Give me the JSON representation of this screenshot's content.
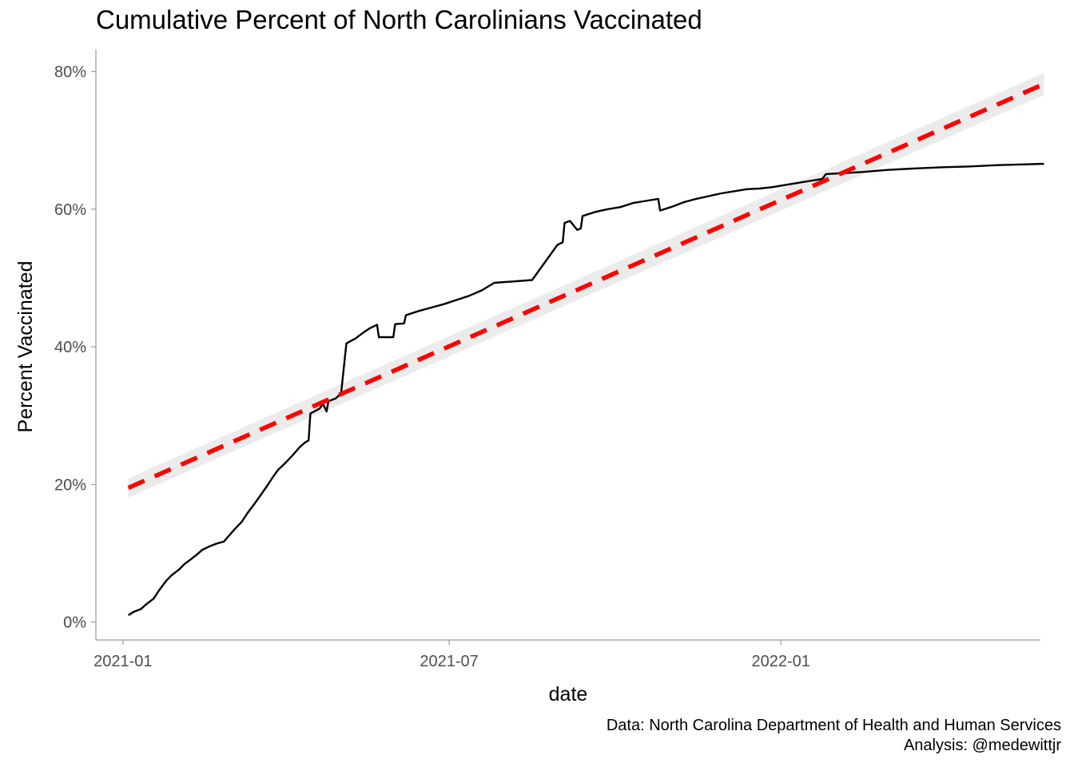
{
  "chart_data": {
    "type": "line",
    "title": "Cumulative Percent of North Carolinians Vaccinated",
    "xlabel": "date",
    "ylabel": "Percent Vaccinated",
    "x_ticks": [
      "2021-01",
      "2021-07",
      "2022-01"
    ],
    "y_ticks": [
      "0%",
      "20%",
      "40%",
      "60%",
      "80%"
    ],
    "ylim": [
      -2.6,
      83.2
    ],
    "xlim": [
      "2020-12-17",
      "2022-05-25"
    ],
    "grid": false,
    "colors": {
      "actual": "#000000",
      "trend": "#ff0000",
      "trend_band": "#ebebeb"
    },
    "series": [
      {
        "style": "solid",
        "points": [
          [
            "2021-01-04",
            1.0
          ],
          [
            "2021-01-07",
            1.5
          ],
          [
            "2021-01-11",
            1.9
          ],
          [
            "2021-01-14",
            2.6
          ],
          [
            "2021-01-18",
            3.4
          ],
          [
            "2021-01-21",
            4.6
          ],
          [
            "2021-01-25",
            6.0
          ],
          [
            "2021-01-28",
            6.8
          ],
          [
            "2021-02-01",
            7.6
          ],
          [
            "2021-02-04",
            8.4
          ],
          [
            "2021-02-08",
            9.2
          ],
          [
            "2021-02-11",
            9.8
          ],
          [
            "2021-02-14",
            10.5
          ],
          [
            "2021-02-18",
            11.0
          ],
          [
            "2021-02-22",
            11.4
          ],
          [
            "2021-02-26",
            11.7
          ],
          [
            "2021-03-01",
            12.6
          ],
          [
            "2021-03-04",
            13.5
          ],
          [
            "2021-03-08",
            14.6
          ],
          [
            "2021-03-11",
            15.8
          ],
          [
            "2021-03-15",
            17.2
          ],
          [
            "2021-03-18",
            18.3
          ],
          [
            "2021-03-22",
            19.8
          ],
          [
            "2021-03-25",
            21.0
          ],
          [
            "2021-03-28",
            22.1
          ],
          [
            "2021-04-01",
            23.1
          ],
          [
            "2021-04-05",
            24.2
          ],
          [
            "2021-04-09",
            25.4
          ],
          [
            "2021-04-12",
            26.1
          ],
          [
            "2021-04-14",
            26.4
          ],
          [
            "2021-04-15",
            30.3
          ],
          [
            "2021-04-20",
            31.0
          ],
          [
            "2021-04-22",
            31.7
          ],
          [
            "2021-04-24",
            30.6
          ],
          [
            "2021-04-25",
            32.1
          ],
          [
            "2021-04-29",
            32.5
          ],
          [
            "2021-05-02",
            33.2
          ],
          [
            "2021-05-05",
            40.5
          ],
          [
            "2021-05-10",
            41.2
          ],
          [
            "2021-05-14",
            42.0
          ],
          [
            "2021-05-18",
            42.7
          ],
          [
            "2021-05-22",
            43.2
          ],
          [
            "2021-05-23",
            41.4
          ],
          [
            "2021-05-31",
            41.4
          ],
          [
            "2021-06-01",
            43.3
          ],
          [
            "2021-06-06",
            43.4
          ],
          [
            "2021-06-07",
            44.6
          ],
          [
            "2021-06-14",
            45.2
          ],
          [
            "2021-06-21",
            45.7
          ],
          [
            "2021-06-28",
            46.2
          ],
          [
            "2021-07-05",
            46.8
          ],
          [
            "2021-07-12",
            47.4
          ],
          [
            "2021-07-19",
            48.2
          ],
          [
            "2021-07-26",
            49.3
          ],
          [
            "2021-08-16",
            49.7
          ],
          [
            "2021-08-30",
            54.8
          ],
          [
            "2021-09-02",
            55.2
          ],
          [
            "2021-09-03",
            58.0
          ],
          [
            "2021-09-06",
            58.3
          ],
          [
            "2021-09-10",
            57.0
          ],
          [
            "2021-09-12",
            57.2
          ],
          [
            "2021-09-13",
            59.0
          ],
          [
            "2021-09-20",
            59.6
          ],
          [
            "2021-09-27",
            60.0
          ],
          [
            "2021-10-04",
            60.3
          ],
          [
            "2021-10-11",
            60.9
          ],
          [
            "2021-10-18",
            61.2
          ],
          [
            "2021-10-25",
            61.5
          ],
          [
            "2021-10-26",
            59.8
          ],
          [
            "2021-11-01",
            60.3
          ],
          [
            "2021-11-08",
            61.0
          ],
          [
            "2021-11-15",
            61.5
          ],
          [
            "2021-11-22",
            61.9
          ],
          [
            "2021-11-29",
            62.3
          ],
          [
            "2021-12-06",
            62.6
          ],
          [
            "2021-12-13",
            62.9
          ],
          [
            "2021-12-20",
            63.0
          ],
          [
            "2021-12-27",
            63.2
          ],
          [
            "2022-01-03",
            63.5
          ],
          [
            "2022-01-10",
            63.8
          ],
          [
            "2022-01-17",
            64.1
          ],
          [
            "2022-01-24",
            64.4
          ],
          [
            "2022-01-26",
            65.1
          ],
          [
            "2022-02-02",
            65.2
          ],
          [
            "2022-02-15",
            65.4
          ],
          [
            "2022-03-01",
            65.7
          ],
          [
            "2022-03-15",
            65.9
          ],
          [
            "2022-04-01",
            66.1
          ],
          [
            "2022-04-15",
            66.2
          ],
          [
            "2022-05-01",
            66.4
          ],
          [
            "2022-05-15",
            66.5
          ],
          [
            "2022-05-27",
            66.6
          ]
        ]
      },
      {
        "style": "dashed",
        "points": [
          [
            "2021-01-04",
            19.5
          ],
          [
            "2022-05-27",
            78.2
          ]
        ],
        "band": [
          [
            18.1,
            20.9
          ],
          [
            76.6,
            79.8
          ]
        ]
      }
    ],
    "caption": [
      "Data: North Carolina Department of Health and Human Services",
      "Analysis: @medewittjr"
    ]
  }
}
